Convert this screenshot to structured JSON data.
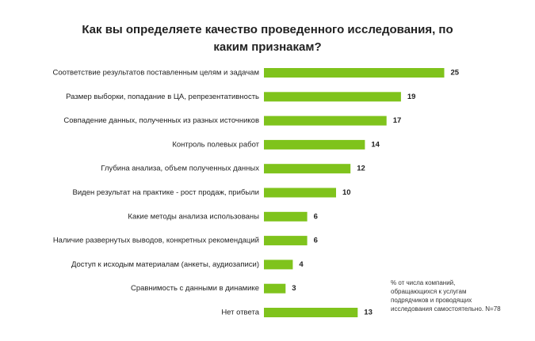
{
  "chart_data": {
    "type": "bar",
    "orientation": "horizontal",
    "title": "Как вы определяете качество проведенного исследования, по каким признакам?",
    "categories": [
      "Соответствие результатов поставленным целям и задачам",
      "Размер выборки, попадание в ЦА, репрезентативность",
      "Совпадение данных, полученных из разных источников",
      "Контроль полевых работ",
      "Глубина анализа, объем полученных данных",
      "Виден результат на практике - рост продаж, прибыли",
      "Какие методы анализа использованы",
      "Наличие развернутых выводов, конкретных рекомендаций",
      "Доступ к исходым материалам (анкеты, аудиозаписи)",
      "Сравнимость с данными в динамике",
      "Нет ответа"
    ],
    "values": [
      25,
      19,
      17,
      14,
      12,
      10,
      6,
      6,
      4,
      3,
      13
    ],
    "color": "#7fc31c",
    "note": "% от числа компаний, обращающихся к услугам подрядчиков и проводящих исследования самостоятельно. N=78"
  }
}
